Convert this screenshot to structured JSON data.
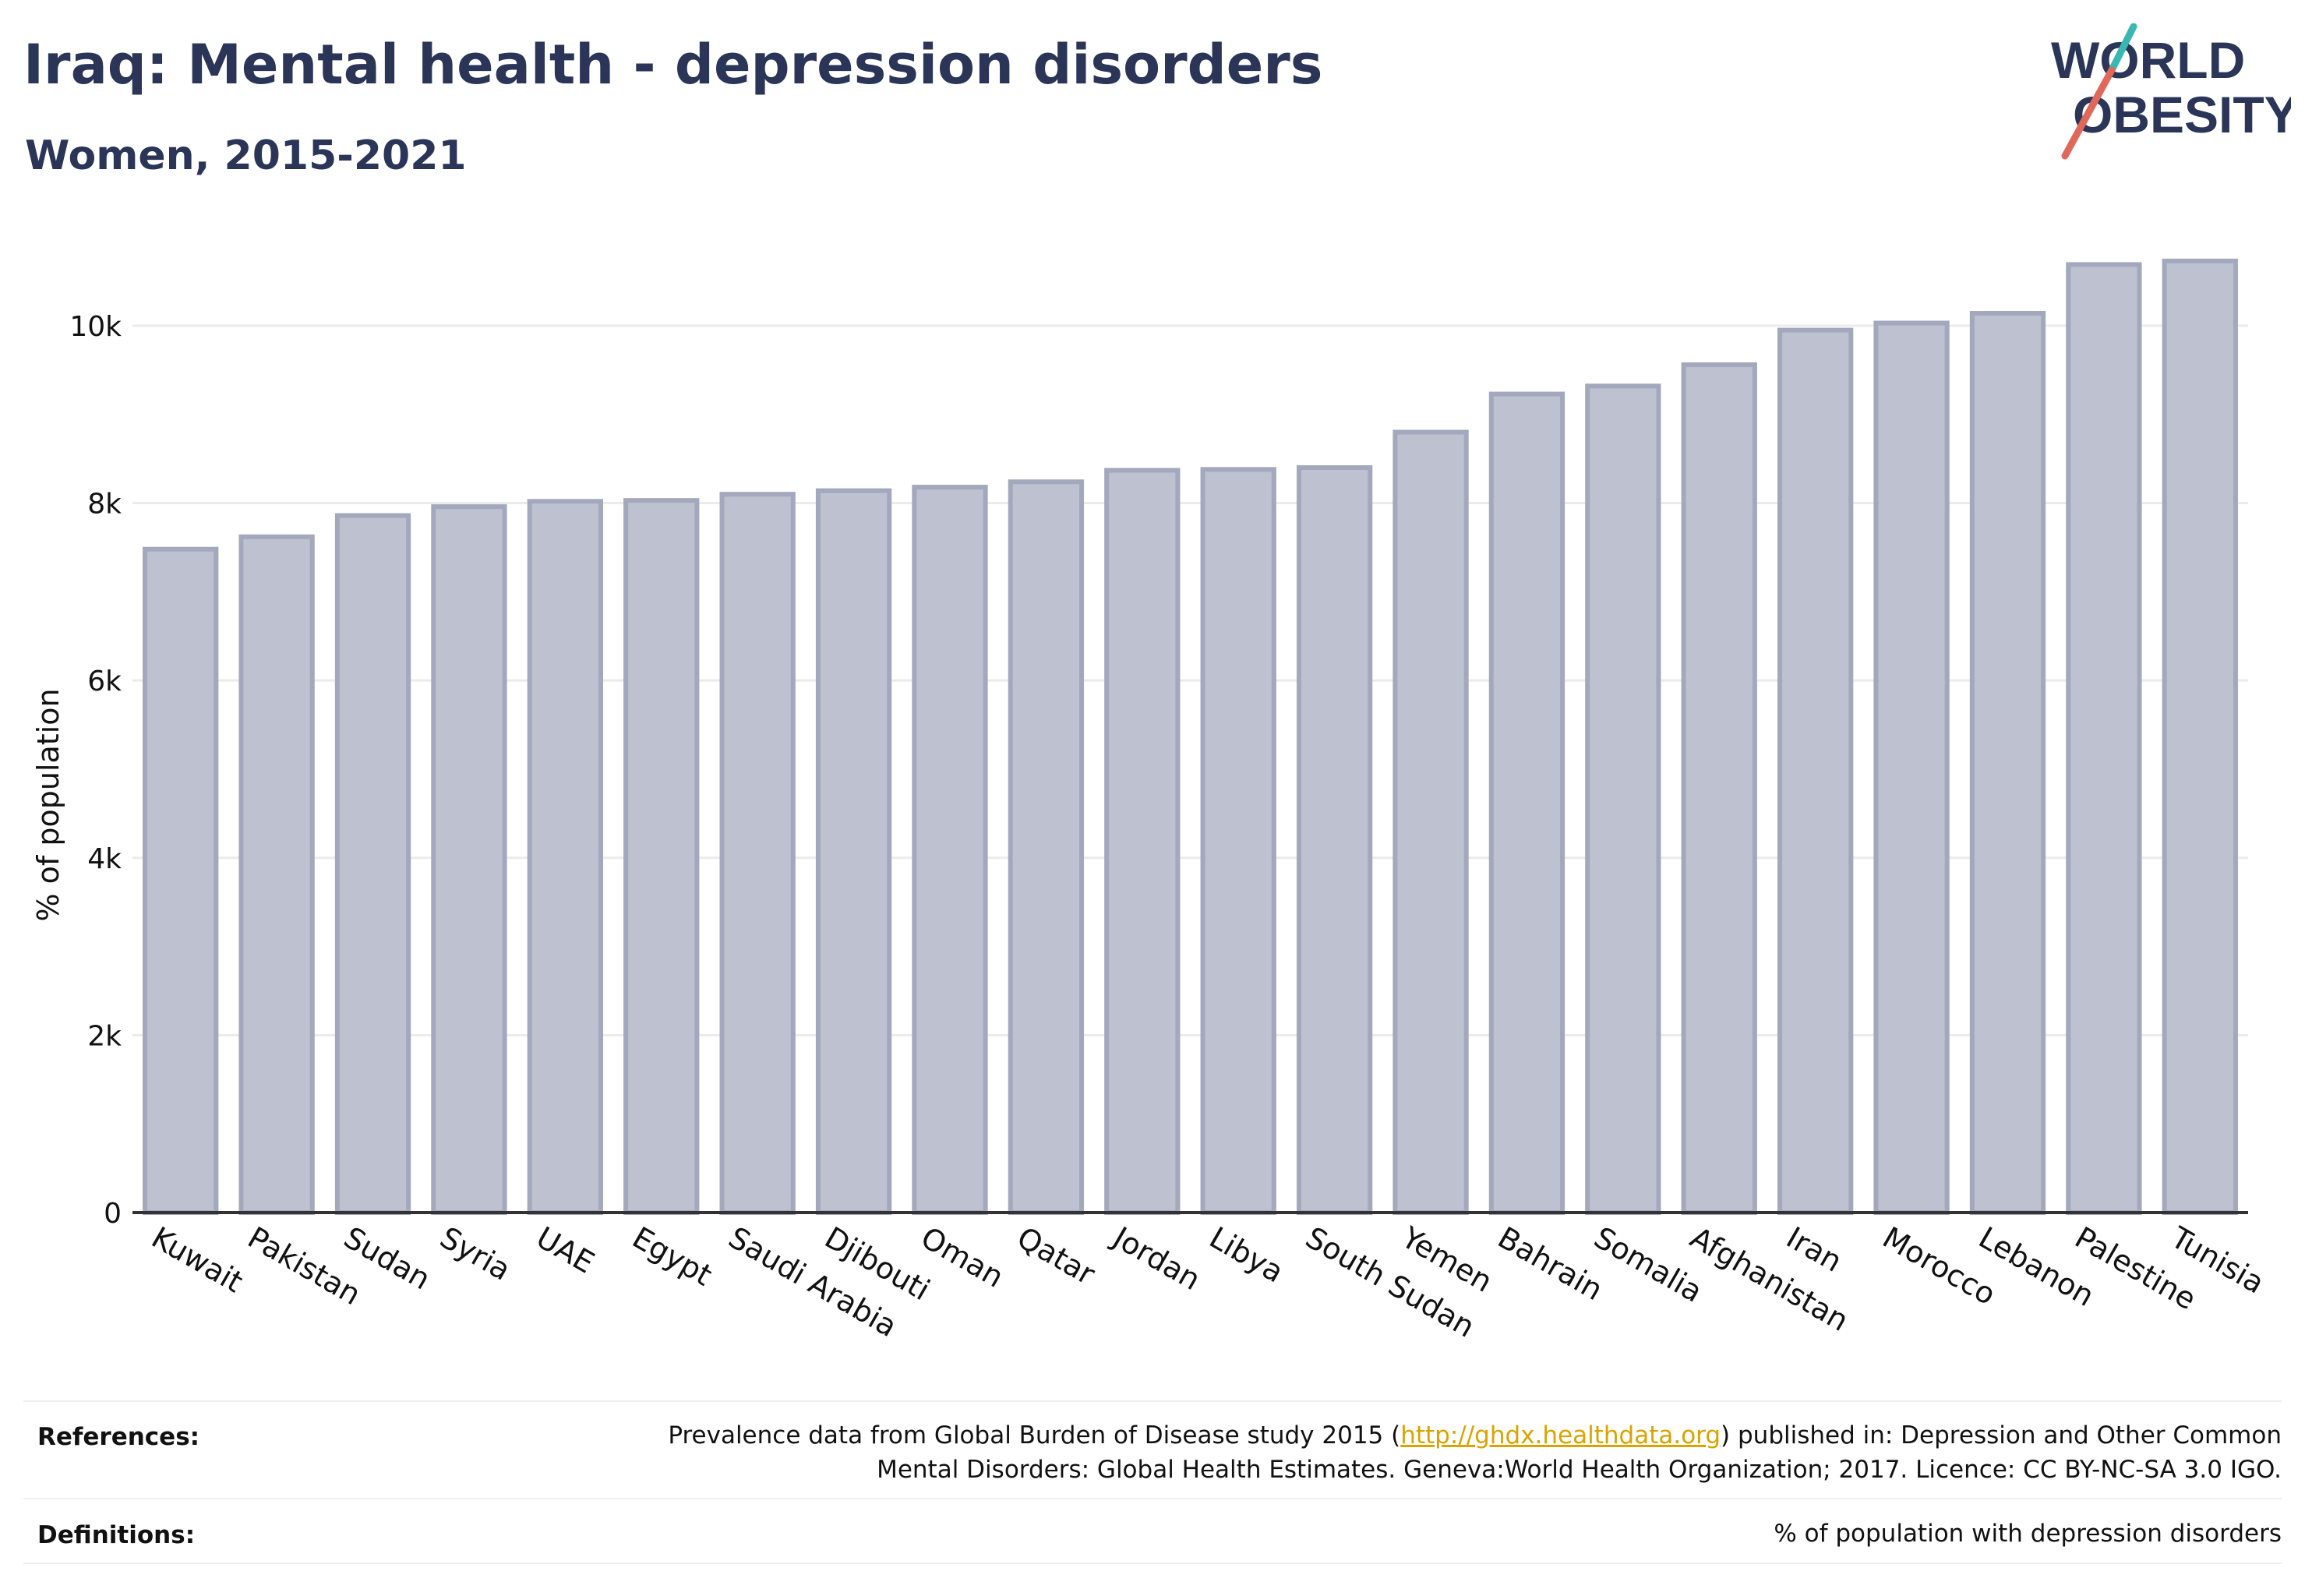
{
  "title": "Iraq: Mental health - depression disorders",
  "subtitle": "Women, 2015-2021",
  "logo": {
    "line1": "WORLD",
    "line2": "OBESITY"
  },
  "chart_data": {
    "type": "bar",
    "categories": [
      "Kuwait",
      "Pakistan",
      "Sudan",
      "Syria",
      "UAE",
      "Egypt",
      "Saudi Arabia",
      "Djibouti",
      "Oman",
      "Qatar",
      "Jordan",
      "Libya",
      "South Sudan",
      "Yemen",
      "Bahrain",
      "Somalia",
      "Afghanistan",
      "Iran",
      "Morocco",
      "Lebanon",
      "Palestine",
      "Tunisia"
    ],
    "values": [
      7480,
      7620,
      7860,
      7960,
      8020,
      8030,
      8100,
      8140,
      8180,
      8240,
      8370,
      8380,
      8400,
      8800,
      9230,
      9320,
      9560,
      9950,
      10030,
      10140,
      10690,
      10730
    ],
    "ylabel": "% of population",
    "ylim": [
      0,
      11300
    ],
    "yticks": [
      0,
      2000,
      4000,
      6000,
      8000,
      10000
    ],
    "ytick_labels": [
      "0",
      "2k",
      "4k",
      "6k",
      "8k",
      "10k"
    ],
    "grid": true,
    "colors": {
      "bar_fill": "#bdc1d0",
      "bar_stroke": "#a3a8bd",
      "grid": "#ebebeb",
      "axis": "#333333"
    }
  },
  "footer": {
    "references_label": "References:",
    "references_pre": "Prevalence data from Global Burden of Disease study 2015 (",
    "references_link": "http://ghdx.healthdata.org",
    "references_post": ") published in: Depression and Other Common",
    "references_line2": "Mental Disorders: Global Health Estimates. Geneva:World Health Organization; 2017. Licence: CC BY-NC-SA 3.0 IGO.",
    "definitions_label": "Definitions:",
    "definitions_text": "% of population with depression disorders"
  }
}
